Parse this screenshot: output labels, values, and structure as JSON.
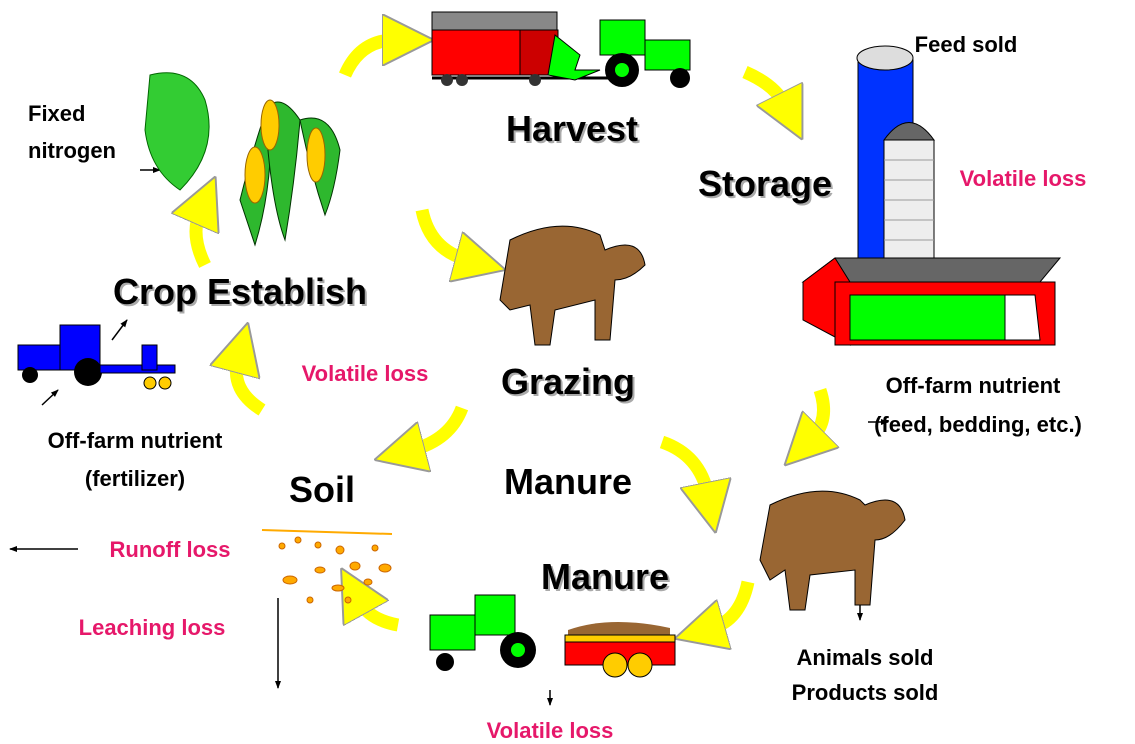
{
  "stages": {
    "harvest": "Harvest",
    "storage": "Storage",
    "crop_establish": "Crop Establish",
    "grazing": "Grazing",
    "manure_center": "Manure",
    "manure_lower": "Manure",
    "soil": "Soil"
  },
  "notes": {
    "feed_sold": "Feed sold",
    "storage_volatile_loss": "Volatile loss",
    "off_farm_feed": [
      "Off-farm nutrient",
      "(feed, bedding, etc.)"
    ],
    "fixed_nitrogen": [
      "Fixed",
      "nitrogen"
    ],
    "soil_volatile_loss": "Volatile loss",
    "off_farm_fertilizer": [
      "Off-farm nutrient",
      "(fertilizer)"
    ],
    "runoff_loss": "Runoff loss",
    "leaching_loss": "Leaching loss",
    "animals_products": [
      "Animals sold",
      "Products sold"
    ],
    "manure_volatile_loss": "Volatile loss"
  }
}
